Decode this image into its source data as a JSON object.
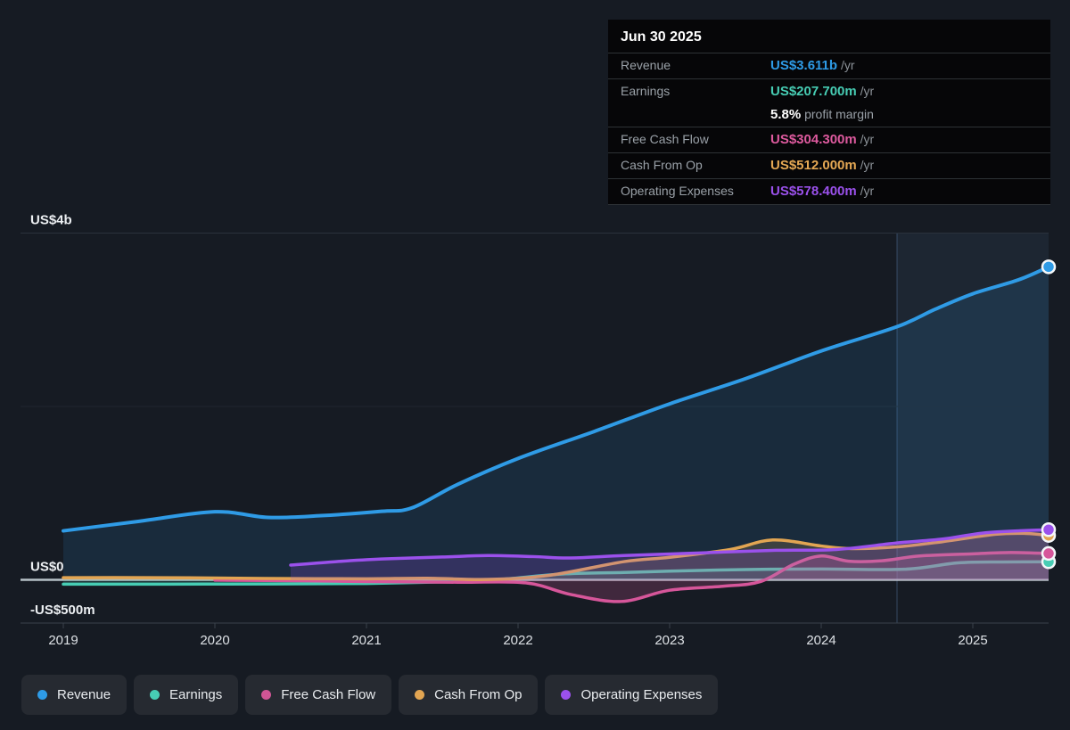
{
  "tooltip": {
    "date": "Jun 30 2025",
    "rows": [
      {
        "label": "Revenue",
        "value": "US$3.611b",
        "suffix": " /yr",
        "color": "#2e9be6"
      },
      {
        "label": "Earnings",
        "value": "US$207.700m",
        "suffix": " /yr",
        "color": "#47cdb4",
        "margin_value": "5.8%",
        "margin_text": " profit margin"
      },
      {
        "label": "Free Cash Flow",
        "value": "US$304.300m",
        "suffix": " /yr",
        "color": "#dd5a9e"
      },
      {
        "label": "Cash From Op",
        "value": "US$512.000m",
        "suffix": " /yr",
        "color": "#e5a854"
      },
      {
        "label": "Operating Expenses",
        "value": "US$578.400m",
        "suffix": " /yr",
        "color": "#9b51ec"
      }
    ]
  },
  "legend": {
    "items": [
      {
        "label": "Revenue",
        "color": "#2e9be6"
      },
      {
        "label": "Earnings",
        "color": "#47cdb4"
      },
      {
        "label": "Free Cash Flow",
        "color": "#cf5595"
      },
      {
        "label": "Cash From Op",
        "color": "#e2a552"
      },
      {
        "label": "Operating Expenses",
        "color": "#9b51ec"
      }
    ]
  },
  "chart_data": {
    "type": "line",
    "unit": "US$ billions per year",
    "x_axis_years": [
      "2019",
      "2020",
      "2021",
      "2022",
      "2023",
      "2024",
      "2025"
    ],
    "y_axis_labels": [
      {
        "text": "US$4b",
        "value": 4
      },
      {
        "text": "US$0",
        "value": 0
      },
      {
        "text": "-US$500m",
        "value": -0.5
      }
    ],
    "ylim_billions": [
      -0.5,
      4
    ],
    "x_range_years": [
      2019,
      2025.5
    ],
    "gridline_values": [
      4,
      2
    ],
    "zero_line_value": 0,
    "highlight_band": {
      "from_year": 2024.5,
      "to_year": 2025.5
    },
    "legend_position": "bottom",
    "series": [
      {
        "name": "Revenue",
        "color": "#2f9be6",
        "width": 4,
        "fill_opacity": 0.13,
        "points": [
          [
            2019.0,
            0.565
          ],
          [
            2019.5,
            0.675
          ],
          [
            2020.0,
            0.785
          ],
          [
            2020.35,
            0.72
          ],
          [
            2020.7,
            0.74
          ],
          [
            2021.1,
            0.79
          ],
          [
            2021.3,
            0.83
          ],
          [
            2021.6,
            1.1
          ],
          [
            2022.0,
            1.4
          ],
          [
            2022.5,
            1.71
          ],
          [
            2023.0,
            2.03
          ],
          [
            2023.5,
            2.32
          ],
          [
            2024.0,
            2.64
          ],
          [
            2024.5,
            2.92
          ],
          [
            2024.75,
            3.12
          ],
          [
            2025.0,
            3.3
          ],
          [
            2025.3,
            3.46
          ],
          [
            2025.5,
            3.611
          ]
        ]
      },
      {
        "name": "Earnings",
        "color": "#47cdb4",
        "width": 3.5,
        "fill_opacity": 0.15,
        "points": [
          [
            2019.0,
            -0.05
          ],
          [
            2019.7,
            -0.05
          ],
          [
            2020.4,
            -0.047
          ],
          [
            2021.0,
            -0.042
          ],
          [
            2021.5,
            -0.025
          ],
          [
            2021.85,
            0.0
          ],
          [
            2022.3,
            0.068
          ],
          [
            2022.7,
            0.085
          ],
          [
            2023.0,
            0.1
          ],
          [
            2023.5,
            0.118
          ],
          [
            2024.0,
            0.125
          ],
          [
            2024.55,
            0.122
          ],
          [
            2024.9,
            0.195
          ],
          [
            2025.2,
            0.206
          ],
          [
            2025.5,
            0.2077
          ]
        ]
      },
      {
        "name": "Free Cash Flow",
        "color": "#d6569a",
        "width": 3.5,
        "fill_opacity": 0.22,
        "points": [
          [
            2020.0,
            -0.004
          ],
          [
            2020.6,
            -0.012
          ],
          [
            2021.0,
            -0.02
          ],
          [
            2021.6,
            -0.028
          ],
          [
            2022.05,
            -0.035
          ],
          [
            2022.35,
            -0.17
          ],
          [
            2022.68,
            -0.25
          ],
          [
            2023.0,
            -0.12
          ],
          [
            2023.35,
            -0.075
          ],
          [
            2023.6,
            -0.02
          ],
          [
            2023.82,
            0.18
          ],
          [
            2024.0,
            0.275
          ],
          [
            2024.18,
            0.215
          ],
          [
            2024.4,
            0.22
          ],
          [
            2024.65,
            0.275
          ],
          [
            2025.0,
            0.3
          ],
          [
            2025.25,
            0.315
          ],
          [
            2025.5,
            0.3043
          ]
        ]
      },
      {
        "name": "Cash From Op",
        "color": "#e2a552",
        "width": 3.5,
        "fill_opacity": 0.18,
        "points": [
          [
            2019.0,
            0.025
          ],
          [
            2019.6,
            0.025
          ],
          [
            2020.0,
            0.02
          ],
          [
            2020.5,
            0.014
          ],
          [
            2021.0,
            0.012
          ],
          [
            2021.4,
            0.018
          ],
          [
            2021.8,
            0.005
          ],
          [
            2022.2,
            0.05
          ],
          [
            2022.7,
            0.21
          ],
          [
            2023.0,
            0.26
          ],
          [
            2023.4,
            0.35
          ],
          [
            2023.68,
            0.46
          ],
          [
            2024.0,
            0.39
          ],
          [
            2024.2,
            0.36
          ],
          [
            2024.5,
            0.38
          ],
          [
            2024.8,
            0.44
          ],
          [
            2025.15,
            0.525
          ],
          [
            2025.35,
            0.535
          ],
          [
            2025.5,
            0.512
          ]
        ]
      },
      {
        "name": "Operating Expenses",
        "color": "#9b51ec",
        "width": 3.5,
        "fill_opacity": 0.2,
        "points": [
          [
            2020.5,
            0.17
          ],
          [
            2020.8,
            0.21
          ],
          [
            2021.1,
            0.24
          ],
          [
            2021.5,
            0.263
          ],
          [
            2021.8,
            0.28
          ],
          [
            2022.1,
            0.268
          ],
          [
            2022.35,
            0.252
          ],
          [
            2022.7,
            0.28
          ],
          [
            2023.2,
            0.31
          ],
          [
            2023.7,
            0.34
          ],
          [
            2024.1,
            0.35
          ],
          [
            2024.5,
            0.425
          ],
          [
            2024.8,
            0.47
          ],
          [
            2025.1,
            0.545
          ],
          [
            2025.5,
            0.5784
          ]
        ]
      }
    ]
  }
}
